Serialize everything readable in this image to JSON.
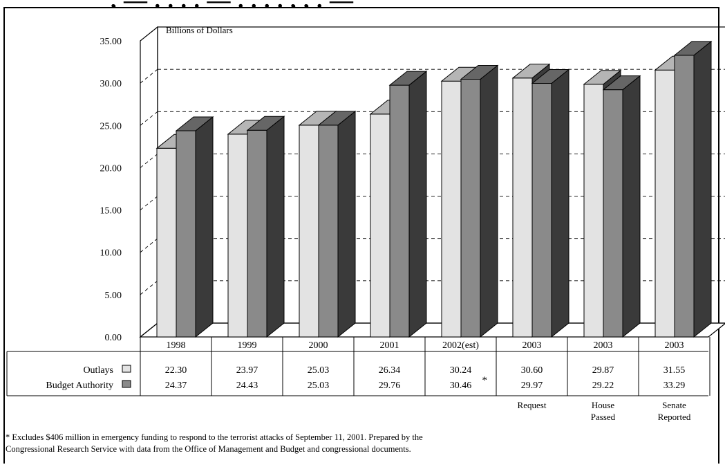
{
  "title_fragment": ", — . . . . — . . . . , , . —",
  "chart_data": {
    "type": "bar",
    "ylabel": "Billions of Dollars",
    "ylim": [
      0,
      35
    ],
    "yticks": [
      "0.00",
      "5.00",
      "10.00",
      "15.00",
      "20.00",
      "25.00",
      "30.00",
      "35.00"
    ],
    "grid": "dashed horizontal",
    "categories": [
      "1998",
      "1999",
      "2000",
      "2001",
      "2002(est)",
      "2003",
      "2003",
      "2003"
    ],
    "category_sublabels": [
      "",
      "",
      "",
      "",
      "",
      "Request",
      "House\nPassed",
      "Senate\nReported"
    ],
    "series": [
      {
        "name": "Outlays",
        "values": [
          22.3,
          23.97,
          25.03,
          26.34,
          30.24,
          30.6,
          29.87,
          31.55
        ],
        "labels": [
          "22.30",
          "23.97",
          "25.03",
          "26.34",
          "30.24",
          "30.60",
          "29.87",
          "31.55"
        ]
      },
      {
        "name": "Budget Authority",
        "values": [
          24.37,
          24.43,
          25.03,
          29.76,
          30.46,
          29.97,
          29.22,
          33.29
        ],
        "labels": [
          "24.37",
          "24.43",
          "25.03",
          "29.76",
          "30.46",
          "29.97",
          "29.22",
          "33.29"
        ]
      }
    ],
    "asterisk": {
      "category": 4,
      "series": 1,
      "text": "*"
    }
  },
  "colors": {
    "outlays_front": "#e3e3e3",
    "outlays_top": "#b5b5b5",
    "outlays_side": "#3c3c3c",
    "ba_front": "#8a8a8a",
    "ba_top": "#666666",
    "ba_side": "#3a3a3a"
  },
  "footnote": {
    "line1": "* Excludes $406 million in emergency funding to respond to the terrorist attacks of September 11, 2001.  Prepared by the",
    "line2": "Congressional Research Service with data from the Office of Management and Budget and congressional documents."
  }
}
